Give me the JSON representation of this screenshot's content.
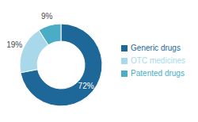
{
  "chart_data": {
    "type": "donut",
    "categories": [
      "Generic drugs",
      "OTC medicines",
      "Patented drugs"
    ],
    "values": [
      72,
      19,
      9
    ],
    "value_labels": [
      "72%",
      "19%",
      "9%"
    ],
    "colors": [
      "#1e6799",
      "#a8d8ea",
      "#4bacc6"
    ],
    "data_labels": true,
    "legend": "right"
  }
}
